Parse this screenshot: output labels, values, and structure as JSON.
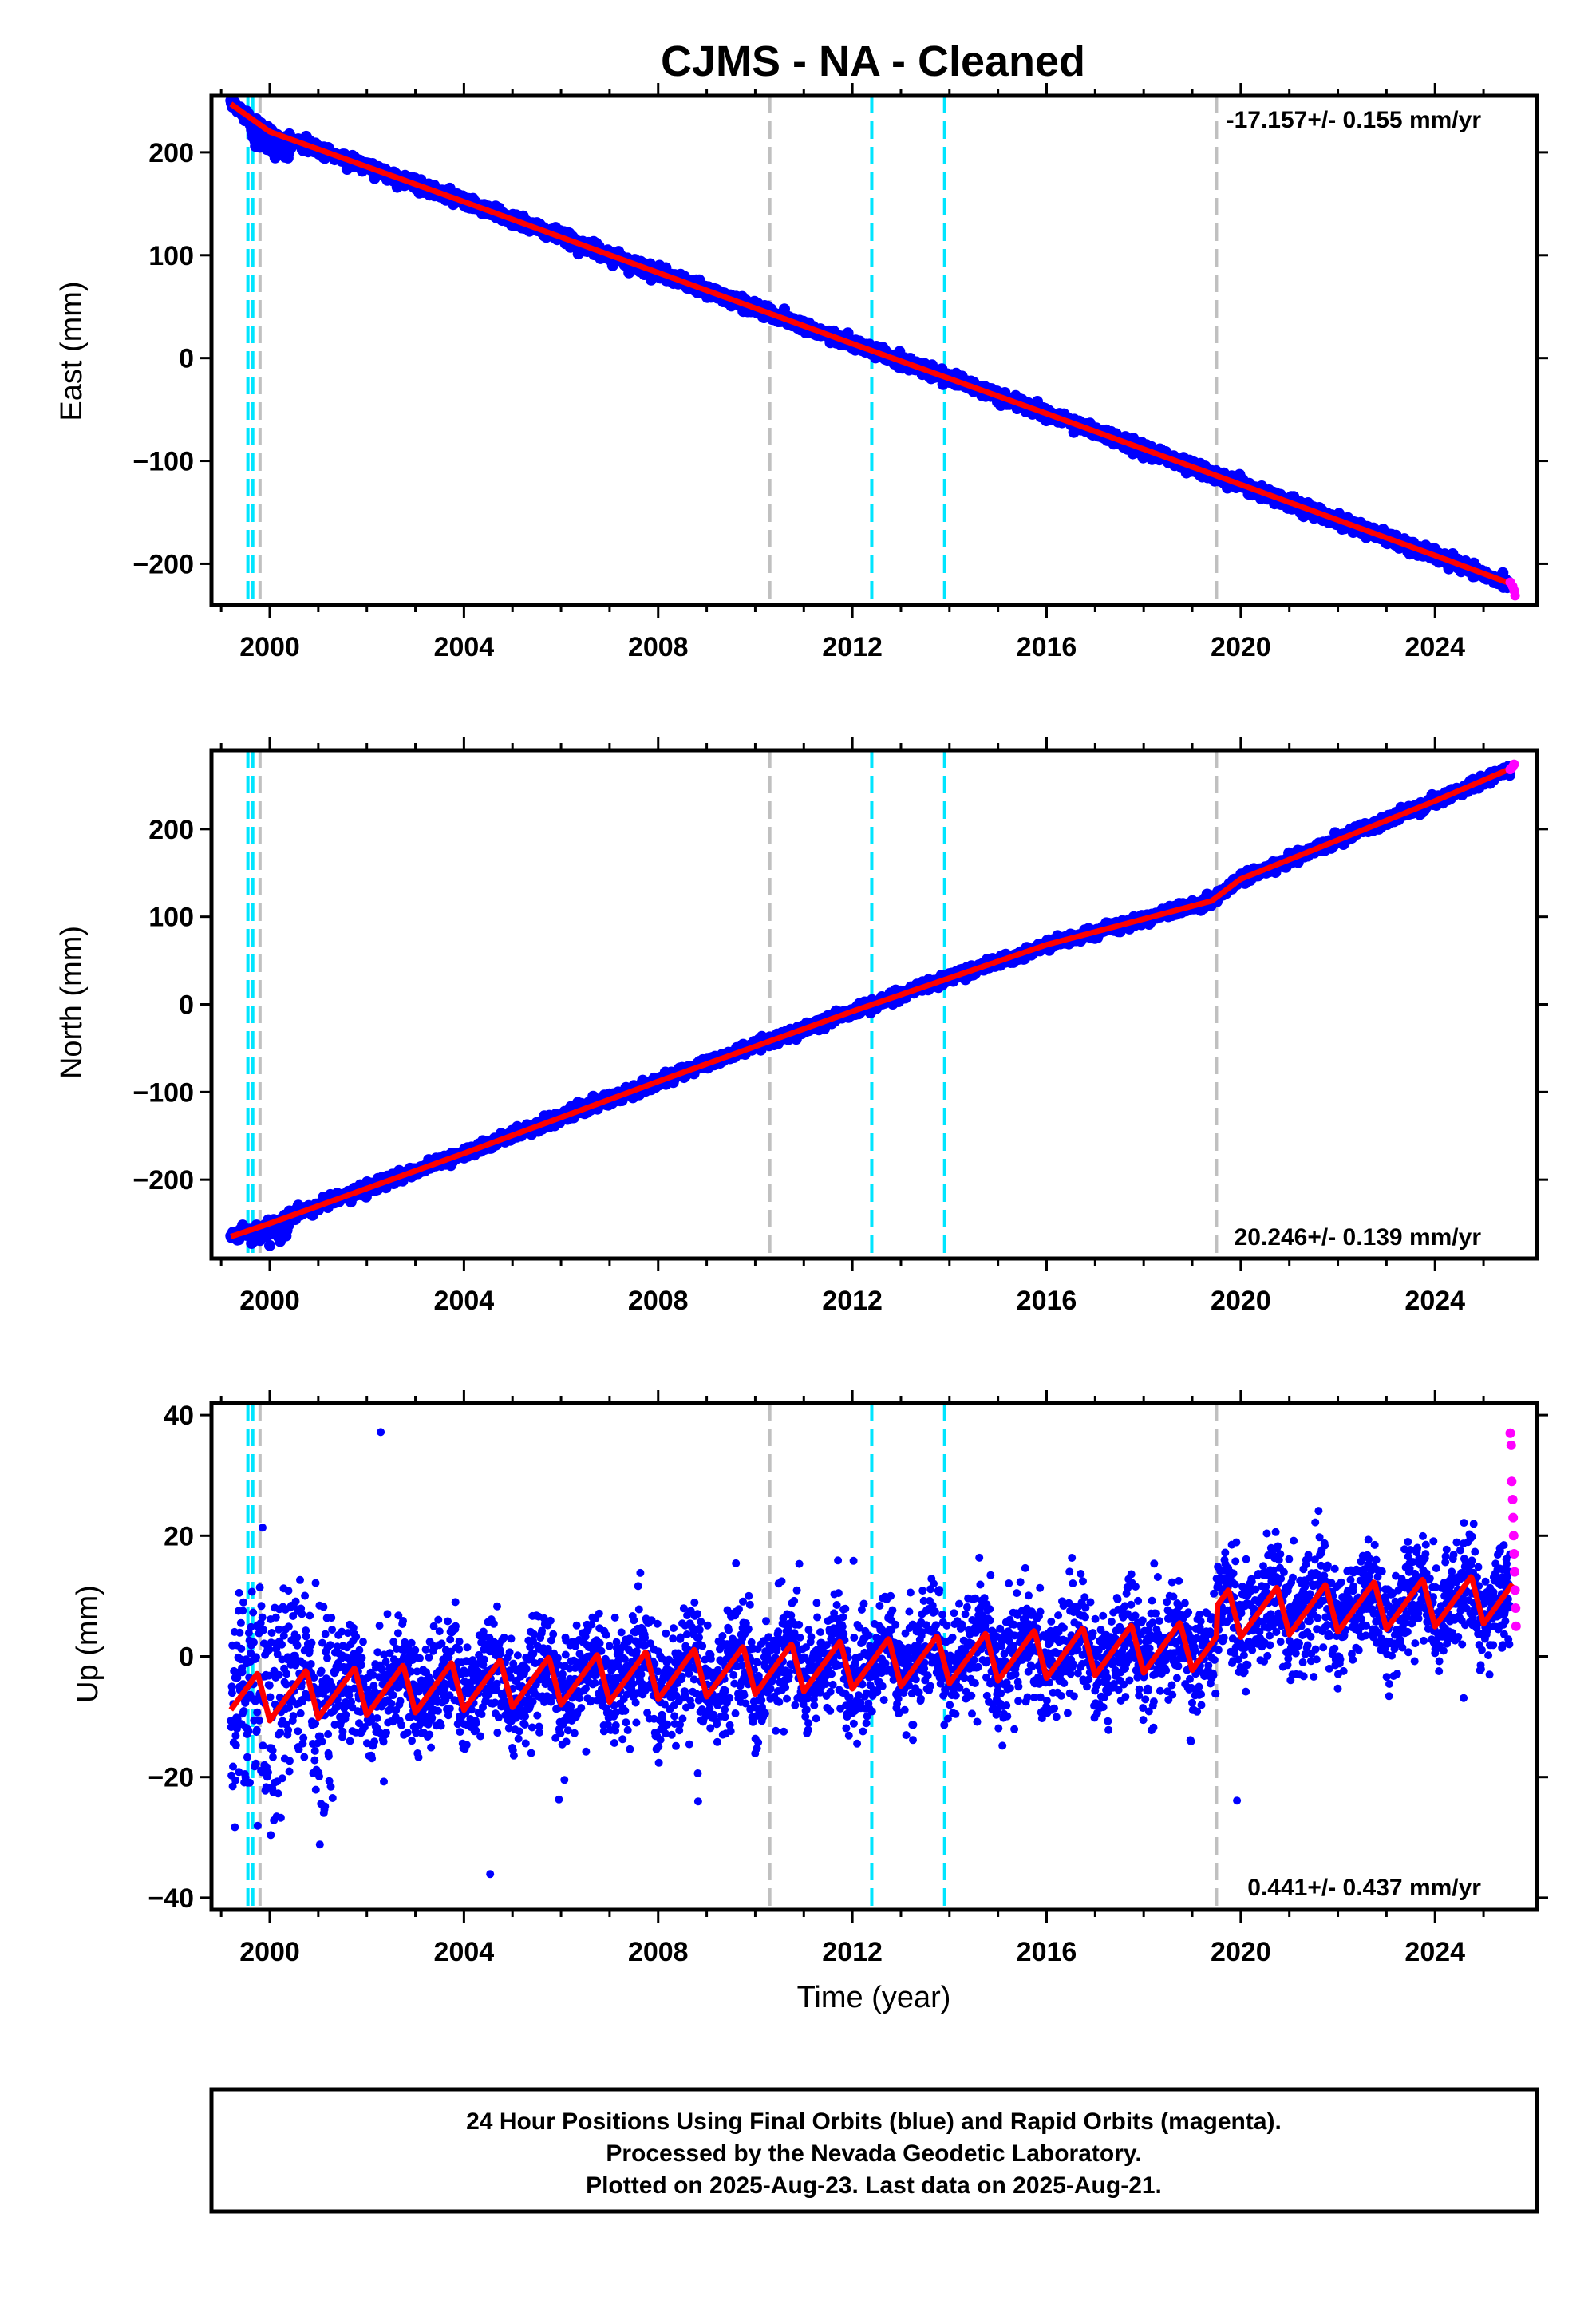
{
  "title": "CJMS  - NA - Cleaned",
  "xlabel": "Time (year)",
  "footer": [
    "24 Hour Positions Using Final Orbits (blue) and Rapid Orbits (magenta).",
    "Processed by the Nevada Geodetic Laboratory.",
    "Plotted on 2025-Aug-23. Last data on 2025-Aug-21."
  ],
  "colors": {
    "final_orbits": "#0000ff",
    "rapid_orbits": "#ff00ff",
    "model_fit": "#ff0000",
    "equipment_change": "#00e5ff",
    "other_event": "#c0c0c0"
  },
  "chart_data": [
    {
      "type": "scatter",
      "component": "East",
      "ylabel": "East (mm)",
      "xlim": [
        1998.8,
        2026.1
      ],
      "ylim": [
        -240,
        255
      ],
      "yticks": [
        -200,
        -100,
        0,
        100,
        200
      ],
      "xticks": [
        2000,
        2004,
        2008,
        2012,
        2016,
        2020,
        2024
      ],
      "rate_label": "-17.157+/- 0.155 mm/yr",
      "rate_mm_yr": -17.157,
      "rate_sigma_mm_yr": 0.155,
      "trend_points": [
        [
          1999.2,
          247
        ],
        [
          2000.0,
          220
        ],
        [
          2001.0,
          203
        ],
        [
          2004.0,
          152
        ],
        [
          2008.0,
          83
        ],
        [
          2012.0,
          14
        ],
        [
          2016.0,
          -54
        ],
        [
          2020.0,
          -123
        ],
        [
          2024.0,
          -192
        ],
        [
          2025.6,
          -220
        ]
      ],
      "rapid_points": [
        [
          2025.55,
          -218
        ],
        [
          2025.6,
          -222
        ],
        [
          2025.63,
          -226
        ],
        [
          2025.65,
          -231
        ]
      ],
      "cyan_events": [
        1999.55,
        1999.65,
        2012.4,
        2013.9
      ],
      "gray_events": [
        1999.8,
        2010.3,
        2019.5
      ]
    },
    {
      "type": "scatter",
      "component": "North",
      "ylabel": "North (mm)",
      "xlim": [
        1998.8,
        2026.1
      ],
      "ylim": [
        -290,
        290
      ],
      "yticks": [
        -200,
        -100,
        0,
        100,
        200
      ],
      "xticks": [
        2000,
        2004,
        2008,
        2012,
        2016,
        2020,
        2024
      ],
      "rate_label": "20.246+/- 0.139 mm/yr",
      "rate_mm_yr": 20.246,
      "rate_sigma_mm_yr": 0.139,
      "trend_points": [
        [
          1999.2,
          -265
        ],
        [
          2000.0,
          -250
        ],
        [
          2004.0,
          -170
        ],
        [
          2008.0,
          -88
        ],
        [
          2012.0,
          -8
        ],
        [
          2016.0,
          68
        ],
        [
          2019.4,
          118
        ],
        [
          2020.0,
          143
        ],
        [
          2024.0,
          232
        ],
        [
          2025.6,
          270
        ]
      ],
      "rapid_points": [
        [
          2025.55,
          268
        ],
        [
          2025.6,
          271
        ],
        [
          2025.63,
          274
        ]
      ],
      "cyan_events": [
        1999.55,
        1999.65,
        2012.4,
        2013.9
      ],
      "gray_events": [
        1999.8,
        2010.3,
        2019.5
      ]
    },
    {
      "type": "scatter",
      "component": "Up",
      "ylabel": "Up (mm)",
      "xlim": [
        1998.8,
        2026.1
      ],
      "ylim": [
        -42,
        42
      ],
      "yticks": [
        -40,
        -20,
        0,
        20,
        40
      ],
      "xticks": [
        2000,
        2004,
        2008,
        2012,
        2016,
        2020,
        2024
      ],
      "rate_label": "0.441+/- 0.437 mm/yr",
      "rate_mm_yr": 0.441,
      "rate_sigma_mm_yr": 0.437,
      "model_offset_at_2019_5_mm": 5,
      "model_annual_amplitude_mm": 4,
      "rapid_points": [
        [
          2025.55,
          37
        ],
        [
          2025.57,
          35
        ],
        [
          2025.58,
          29
        ],
        [
          2025.6,
          26
        ],
        [
          2025.61,
          23
        ],
        [
          2025.62,
          20
        ],
        [
          2025.63,
          17
        ],
        [
          2025.64,
          14
        ],
        [
          2025.65,
          11
        ],
        [
          2025.66,
          8
        ],
        [
          2025.67,
          5
        ]
      ],
      "cyan_events": [
        1999.55,
        1999.65,
        2012.4,
        2013.9
      ],
      "gray_events": [
        1999.8,
        2010.3,
        2019.5
      ]
    }
  ]
}
